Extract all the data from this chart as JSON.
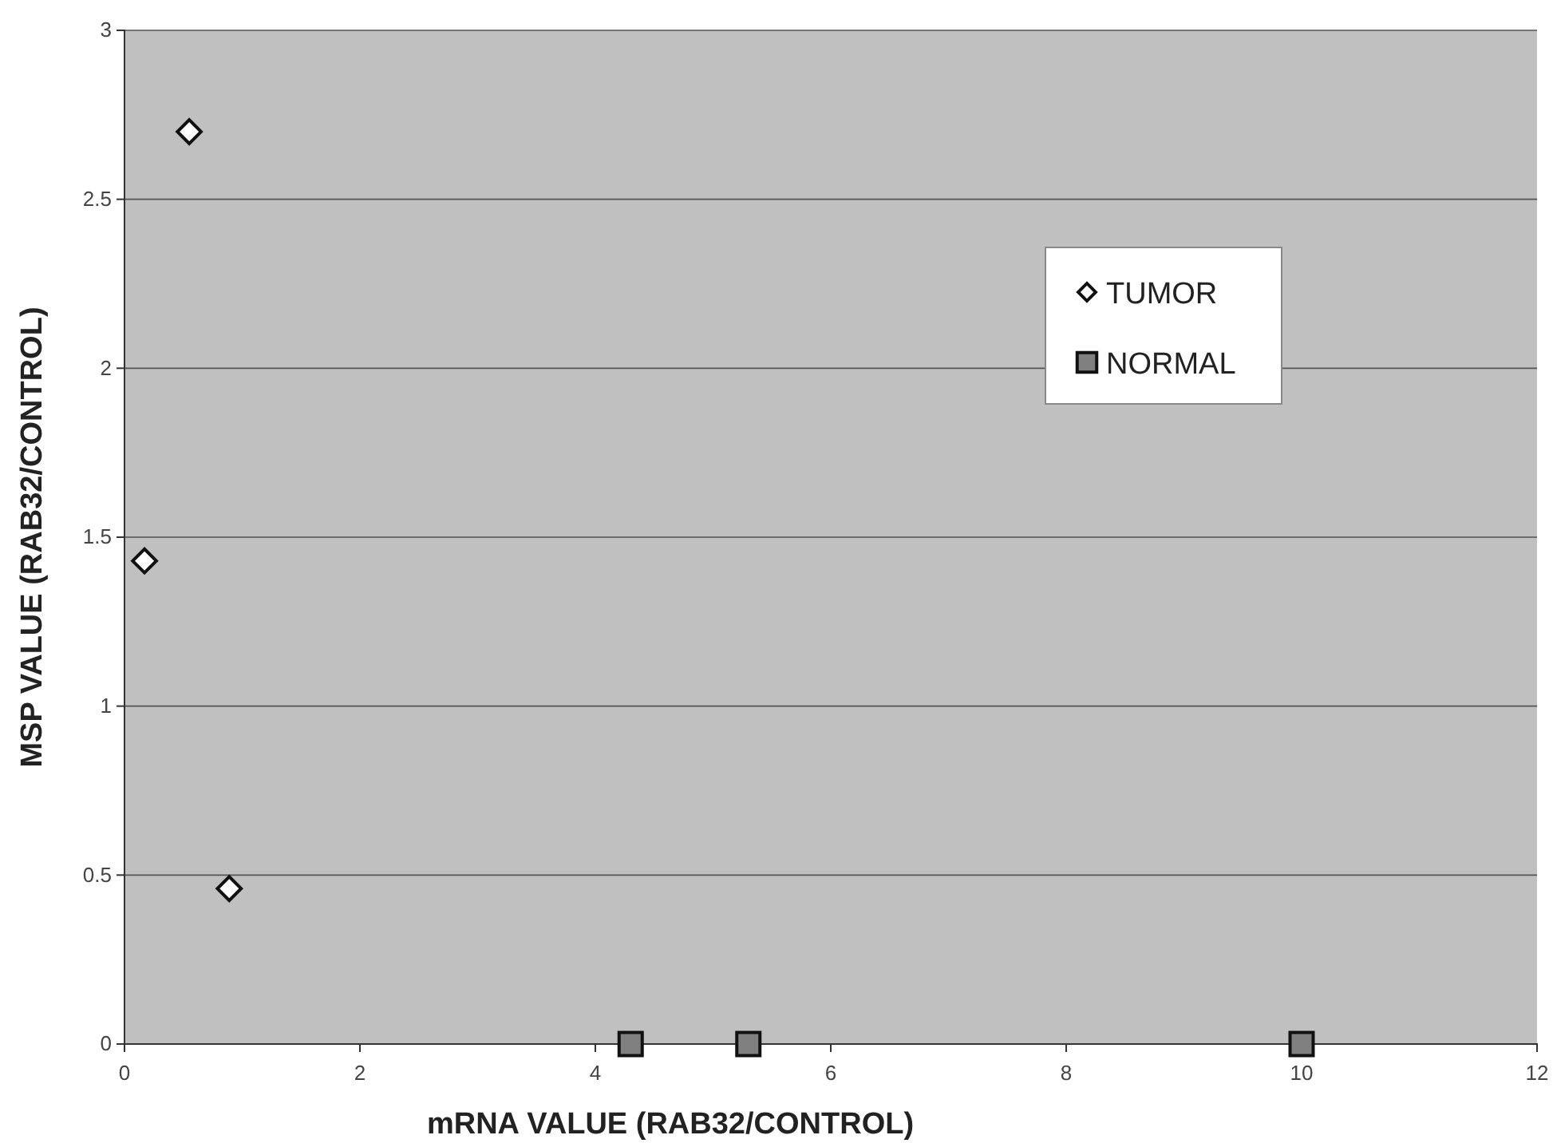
{
  "chart_data": {
    "type": "scatter",
    "xlabel": "mRNA VALUE (RAB32/CONTROL)",
    "ylabel": "MSP VALUE (RAB32/CONTROL)",
    "xlim": [
      0,
      12
    ],
    "xticks": [
      0,
      2,
      4,
      6,
      8,
      10,
      12
    ],
    "ylim": [
      0,
      3
    ],
    "yticks": [
      0,
      0.5,
      1,
      1.5,
      2,
      2.5,
      3
    ],
    "grid": "y",
    "legend": "right",
    "series": [
      {
        "name": "TUMOR",
        "color": "#ffffff",
        "marker": "diamond",
        "x": [
          0.17,
          0.55,
          0.89
        ],
        "values": [
          1.43,
          2.7,
          0.46
        ]
      },
      {
        "name": "NORMAL",
        "color": "#808080",
        "marker": "square",
        "x": [
          4.3,
          5.3,
          10
        ],
        "values": [
          0,
          0,
          0
        ]
      }
    ]
  }
}
